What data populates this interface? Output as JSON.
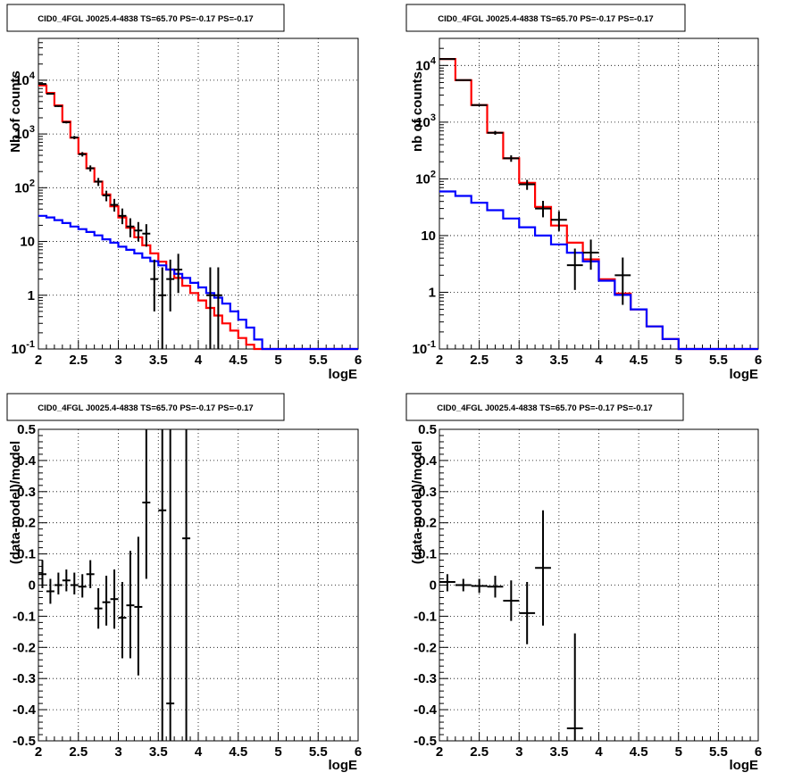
{
  "chart_data": [
    {
      "type": "line",
      "title": "CID0_4FGL J0025.4-4838 TS=65.70 PS=-0.17 PS=-0.17",
      "xlabel": "logE",
      "ylabel": "Nb of counts",
      "xlim": [
        2,
        6
      ],
      "ylim": [
        0.1,
        60000
      ],
      "yscale": "log",
      "grid": true,
      "x_ticks": [
        "2",
        "2.5",
        "3",
        "3.5",
        "4",
        "4.5",
        "5",
        "5.5",
        "6"
      ],
      "y_ticks": [
        "10^-1",
        "1",
        "10",
        "10^2",
        "10^3",
        "10^4"
      ],
      "bin_edges": [
        2.0,
        2.1,
        2.2,
        2.3,
        2.4,
        2.5,
        2.6,
        2.7,
        2.8,
        2.9,
        3.0,
        3.1,
        3.2,
        3.3,
        3.4,
        3.5,
        3.6,
        3.7,
        3.8,
        3.9,
        4.0,
        4.1,
        4.2,
        4.3,
        4.4,
        4.5,
        4.6,
        4.7,
        4.8,
        4.9,
        5.0,
        5.1,
        5.2,
        5.3,
        5.4,
        5.5,
        5.6,
        5.7,
        5.8,
        5.9,
        6.0
      ],
      "series": [
        {
          "color": "#ff0000",
          "values": [
            8000,
            5800,
            3400,
            1700,
            850,
            430,
            230,
            130,
            75,
            45,
            28,
            18,
            12,
            8.5,
            6,
            4.2,
            3,
            2.1,
            1.5,
            1.1,
            0.8,
            0.58,
            0.42,
            0.3,
            0.22,
            0.16,
            0.12,
            0.1,
            0.1,
            0.1,
            0.1,
            0.1,
            0.1,
            0.1,
            0.1,
            0.1,
            0.1,
            0.1,
            0.1,
            0.1
          ]
        },
        {
          "color": "#0000ff",
          "values": [
            30,
            28,
            25,
            22,
            19,
            17,
            15,
            13,
            11,
            9.5,
            8,
            7,
            6,
            5,
            4.3,
            3.6,
            3.0,
            2.5,
            2.1,
            1.7,
            1.4,
            1.1,
            0.9,
            0.7,
            0.5,
            0.35,
            0.25,
            0.15,
            0.1,
            0.1,
            0.1,
            0.1,
            0.1,
            0.1,
            0.1,
            0.1,
            0.1,
            0.1,
            0.1,
            0.1
          ]
        }
      ],
      "points": [
        {
          "x": 2.05,
          "y": 8500,
          "lo": 8300,
          "hi": 8700
        },
        {
          "x": 2.15,
          "y": 5600,
          "lo": 5450,
          "hi": 5750
        },
        {
          "x": 2.25,
          "y": 3300,
          "lo": 3190,
          "hi": 3410
        },
        {
          "x": 2.35,
          "y": 1650,
          "lo": 1570,
          "hi": 1730
        },
        {
          "x": 2.45,
          "y": 860,
          "lo": 800,
          "hi": 920
        },
        {
          "x": 2.55,
          "y": 420,
          "lo": 380,
          "hi": 460
        },
        {
          "x": 2.65,
          "y": 230,
          "lo": 200,
          "hi": 260
        },
        {
          "x": 2.75,
          "y": 130,
          "lo": 108,
          "hi": 152
        },
        {
          "x": 2.85,
          "y": 72,
          "lo": 56,
          "hi": 88
        },
        {
          "x": 2.95,
          "y": 48,
          "lo": 36,
          "hi": 62
        },
        {
          "x": 3.05,
          "y": 30,
          "lo": 21,
          "hi": 41
        },
        {
          "x": 3.15,
          "y": 19,
          "lo": 12,
          "hi": 27
        },
        {
          "x": 3.25,
          "y": 16,
          "lo": 10,
          "hi": 23
        },
        {
          "x": 3.35,
          "y": 14,
          "lo": 8,
          "hi": 21
        },
        {
          "x": 3.45,
          "y": 2,
          "lo": 0.5,
          "hi": 4.6
        },
        {
          "x": 3.55,
          "y": 1,
          "lo": 0.1,
          "hi": 3.3
        },
        {
          "x": 3.65,
          "y": 2,
          "lo": 0.5,
          "hi": 4.6
        },
        {
          "x": 3.75,
          "y": 3,
          "lo": 1.1,
          "hi": 5.9
        },
        {
          "x": 4.15,
          "y": 1,
          "lo": 0.1,
          "hi": 3.3
        },
        {
          "x": 4.25,
          "y": 1,
          "lo": 0.1,
          "hi": 3.3
        }
      ]
    },
    {
      "type": "line",
      "title": "CID0_4FGL J0025.4-4838 TS=65.70 PS=-0.17 PS=-0.17",
      "xlabel": "logE",
      "ylabel": "nb of counts",
      "xlim": [
        2,
        6
      ],
      "ylim": [
        0.1,
        30000
      ],
      "yscale": "log",
      "grid": true,
      "x_ticks": [
        "2",
        "2.5",
        "3",
        "3.5",
        "4",
        "4.5",
        "5",
        "5.5",
        "6"
      ],
      "y_ticks": [
        "10^-1",
        "1",
        "10",
        "10^2",
        "10^3",
        "10^4"
      ],
      "bin_edges": [
        2.0,
        2.2,
        2.4,
        2.6,
        2.8,
        3.0,
        3.2,
        3.4,
        3.6,
        3.8,
        4.0,
        4.2,
        4.4,
        4.6,
        4.8,
        5.0,
        5.2,
        5.4,
        5.6,
        5.8,
        6.0
      ],
      "series": [
        {
          "color": "#ff0000",
          "values": [
            13000,
            5500,
            2000,
            650,
            230,
            85,
            32,
            15,
            7.5,
            3.8,
            1.7,
            0.95,
            0.5,
            0.25,
            0.15,
            0.1,
            0.1,
            0.1,
            0.1,
            0.1
          ]
        },
        {
          "color": "#0000ff",
          "values": [
            60,
            50,
            38,
            28,
            20,
            14,
            10,
            7,
            5,
            3.5,
            1.6,
            0.9,
            0.5,
            0.25,
            0.15,
            0.1,
            0.1,
            0.1,
            0.1,
            0.1
          ]
        }
      ],
      "points": [
        {
          "x": 2.1,
          "y": 13000,
          "lo": 12800,
          "hi": 13200
        },
        {
          "x": 2.3,
          "y": 5500,
          "lo": 5350,
          "hi": 5650
        },
        {
          "x": 2.5,
          "y": 2000,
          "lo": 1910,
          "hi": 2090
        },
        {
          "x": 2.7,
          "y": 650,
          "lo": 600,
          "hi": 700
        },
        {
          "x": 2.9,
          "y": 230,
          "lo": 200,
          "hi": 260
        },
        {
          "x": 3.1,
          "y": 80,
          "lo": 64,
          "hi": 96
        },
        {
          "x": 3.3,
          "y": 30,
          "lo": 21,
          "hi": 41
        },
        {
          "x": 3.5,
          "y": 19,
          "lo": 12,
          "hi": 27
        },
        {
          "x": 3.7,
          "y": 3,
          "lo": 1.1,
          "hi": 5.9
        },
        {
          "x": 3.9,
          "y": 5,
          "lo": 2.5,
          "hi": 8.5
        },
        {
          "x": 4.3,
          "y": 2,
          "lo": 0.6,
          "hi": 4.1
        }
      ]
    },
    {
      "type": "scatter",
      "title": "CID0_4FGL J0025.4-4838 TS=65.70 PS=-0.17 PS=-0.17",
      "xlabel": "logE",
      "ylabel": "(data-model)/model",
      "xlim": [
        2,
        6
      ],
      "ylim": [
        -0.5,
        0.5
      ],
      "grid": true,
      "x_ticks": [
        "2",
        "2.5",
        "3",
        "3.5",
        "4",
        "4.5",
        "5",
        "5.5",
        "6"
      ],
      "y_ticks": [
        "-0.5",
        "-0.4",
        "-0.3",
        "-0.2",
        "-0.1",
        "0",
        "0.1",
        "0.2",
        "0.3",
        "0.4",
        "0.5"
      ],
      "points": [
        {
          "x": 2.05,
          "y": 0.035,
          "lo": -0.01,
          "hi": 0.08,
          "xerr": 0.05
        },
        {
          "x": 2.15,
          "y": -0.02,
          "lo": -0.06,
          "hi": 0.02,
          "xerr": 0.05
        },
        {
          "x": 2.25,
          "y": 0.0,
          "lo": -0.03,
          "hi": 0.04,
          "xerr": 0.05
        },
        {
          "x": 2.35,
          "y": 0.015,
          "lo": -0.02,
          "hi": 0.05,
          "xerr": 0.05
        },
        {
          "x": 2.45,
          "y": 0.0,
          "lo": -0.03,
          "hi": 0.04,
          "xerr": 0.05
        },
        {
          "x": 2.55,
          "y": -0.005,
          "lo": -0.04,
          "hi": 0.035,
          "xerr": 0.05
        },
        {
          "x": 2.65,
          "y": 0.035,
          "lo": -0.01,
          "hi": 0.08,
          "xerr": 0.05
        },
        {
          "x": 2.75,
          "y": -0.075,
          "lo": -0.14,
          "hi": -0.01,
          "xerr": 0.05
        },
        {
          "x": 2.85,
          "y": -0.055,
          "lo": -0.13,
          "hi": 0.03,
          "xerr": 0.05
        },
        {
          "x": 2.95,
          "y": -0.045,
          "lo": -0.14,
          "hi": 0.05,
          "xerr": 0.05
        },
        {
          "x": 3.05,
          "y": -0.105,
          "lo": -0.235,
          "hi": 0.01,
          "xerr": 0.05
        },
        {
          "x": 3.15,
          "y": -0.065,
          "lo": -0.235,
          "hi": 0.11,
          "xerr": 0.05
        },
        {
          "x": 3.25,
          "y": -0.07,
          "lo": -0.29,
          "hi": 0.155,
          "xerr": 0.05
        },
        {
          "x": 3.35,
          "y": 0.265,
          "lo": 0.02,
          "hi": 0.5,
          "xerr": 0.05
        },
        {
          "x": 3.55,
          "y": 0.24,
          "lo": -0.5,
          "hi": 0.5,
          "xerr": 0.05
        },
        {
          "x": 3.65,
          "y": -0.38,
          "lo": -0.5,
          "hi": 0.5,
          "xerr": 0.05
        },
        {
          "x": 3.85,
          "y": 0.15,
          "lo": -0.5,
          "hi": 0.5,
          "xerr": 0.05
        }
      ]
    },
    {
      "type": "scatter",
      "title": "CID0_4FGL J0025.4-4838 TS=65.70 PS=-0.17 PS=-0.17",
      "xlabel": "logE",
      "ylabel": "(data-model)/model",
      "xlim": [
        2,
        6
      ],
      "ylim": [
        -0.5,
        0.5
      ],
      "grid": true,
      "x_ticks": [
        "2",
        "2.5",
        "3",
        "3.5",
        "4",
        "4.5",
        "5",
        "5.5",
        "6"
      ],
      "y_ticks": [
        "-0.5",
        "-0.4",
        "-0.3",
        "-0.2",
        "-0.1",
        "0",
        "0.1",
        "0.2",
        "0.3",
        "0.4",
        "0.5"
      ],
      "points": [
        {
          "x": 2.1,
          "y": 0.01,
          "lo": -0.02,
          "hi": 0.035,
          "xerr": 0.1
        },
        {
          "x": 2.3,
          "y": 0.0,
          "lo": -0.02,
          "hi": 0.02,
          "xerr": 0.1
        },
        {
          "x": 2.5,
          "y": -0.003,
          "lo": -0.025,
          "hi": 0.02,
          "xerr": 0.1
        },
        {
          "x": 2.7,
          "y": -0.005,
          "lo": -0.04,
          "hi": 0.03,
          "xerr": 0.1
        },
        {
          "x": 2.9,
          "y": -0.05,
          "lo": -0.115,
          "hi": 0.015,
          "xerr": 0.1
        },
        {
          "x": 3.1,
          "y": -0.09,
          "lo": -0.19,
          "hi": 0.01,
          "xerr": 0.1
        },
        {
          "x": 3.3,
          "y": 0.055,
          "lo": -0.13,
          "hi": 0.24,
          "xerr": 0.1
        },
        {
          "x": 3.7,
          "y": -0.46,
          "lo": -0.5,
          "hi": -0.155,
          "xerr": 0.1
        }
      ]
    }
  ]
}
